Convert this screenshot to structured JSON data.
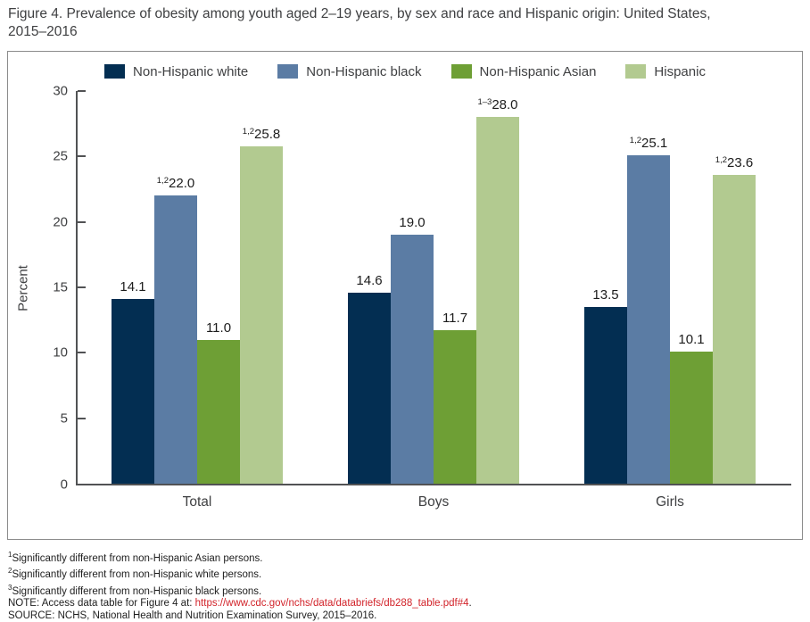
{
  "header": {
    "title_line1": "Figure 4. Prevalence of obesity among youth aged 2–19 years, by sex and race and Hispanic origin: United States,",
    "title_line2": "2015–2016"
  },
  "chart_data": {
    "type": "bar",
    "title": "Figure 4. Prevalence of obesity among youth aged 2–19 years, by sex and race and Hispanic origin: United States, 2015–2016",
    "categories": [
      "Total",
      "Boys",
      "Girls"
    ],
    "series": [
      {
        "name": "Non-Hispanic white",
        "color": "#032e52",
        "values": [
          14.1,
          14.6,
          13.5
        ],
        "displays": [
          "14.1",
          "14.6",
          "13.5"
        ],
        "sig_labels": [
          "",
          "",
          ""
        ]
      },
      {
        "name": "Non-Hispanic black",
        "color": "#5b7ca4",
        "values": [
          22.0,
          19.0,
          25.1
        ],
        "displays": [
          "22.0",
          "19.0",
          "25.1"
        ],
        "sig_labels": [
          "1,2",
          "",
          "1,2"
        ]
      },
      {
        "name": "Non-Hispanic Asian",
        "color": "#6e9f35",
        "values": [
          11.0,
          11.7,
          10.1
        ],
        "displays": [
          "11.0",
          "11.7",
          "10.1"
        ],
        "sig_labels": [
          "",
          "",
          ""
        ]
      },
      {
        "name": "Hispanic",
        "color": "#b2ca90",
        "values": [
          25.8,
          28.0,
          23.6
        ],
        "displays": [
          "25.8",
          "28.0",
          "23.6"
        ],
        "sig_labels": [
          "1,2",
          "1–3",
          "1,2"
        ]
      }
    ],
    "xlabel": "",
    "ylabel": "Percent",
    "ylim": [
      0,
      30
    ],
    "yticks": [
      0,
      5,
      10,
      15,
      20,
      25,
      30
    ],
    "grid": false,
    "legend_position": "top"
  },
  "footnotes": [
    {
      "sup": "1",
      "text": "Significantly different from non-Hispanic Asian persons."
    },
    {
      "sup": "2",
      "text": "Significantly different from non-Hispanic white persons."
    },
    {
      "sup": "3",
      "text": "Significantly different from non-Hispanic black persons."
    }
  ],
  "note": {
    "prefix": "NOTE: Access data table for Figure 4 at: ",
    "link": "https://www.cdc.gov/nchs/data/databriefs/db288_table.pdf#4",
    "suffix": "."
  },
  "source": "SOURCE: NCHS, National Health and Nutrition Examination Survey, 2015–2016.",
  "colors": {
    "axis": "#515254",
    "text": "#3f4042",
    "link_red": "#d2232a",
    "box_border": "#8c8c8c"
  }
}
